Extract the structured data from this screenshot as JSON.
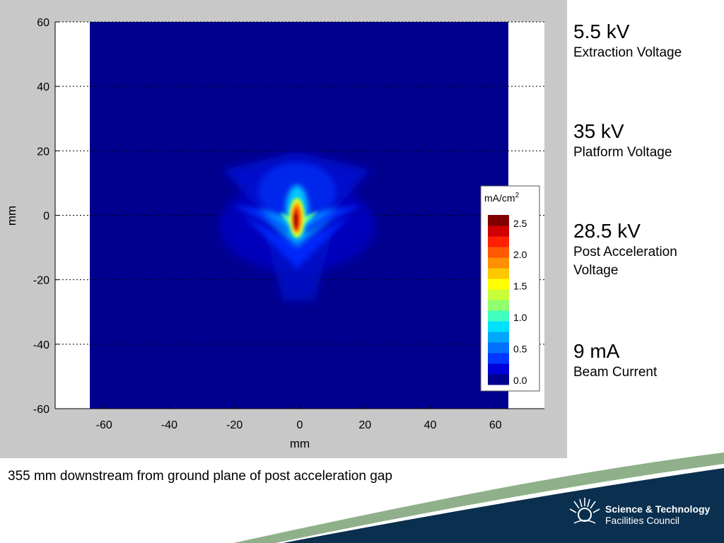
{
  "colors": {
    "panel_bg": "#c8c8c8",
    "plot_bg": "#00008f",
    "footer_blue": "#0a2f4f",
    "footer_green": "#8fb08a"
  },
  "chart_data": {
    "type": "heatmap",
    "title": "",
    "xlabel": "mm",
    "ylabel": "mm",
    "xlim": [
      -75,
      75
    ],
    "ylim": [
      -60,
      60
    ],
    "data_extent_x": [
      -65,
      65
    ],
    "x_ticks": [
      -60,
      -40,
      -20,
      0,
      20,
      40,
      60
    ],
    "y_ticks": [
      60,
      40,
      20,
      0,
      -20,
      -40,
      -60
    ],
    "grid": "dotted horizontal lines at y ticks",
    "colorbar": {
      "label": "mA/cm",
      "label_superscript": "2",
      "ticks": [
        "2.5",
        "2.0",
        "1.5",
        "1.0",
        "0.5",
        "0.0"
      ],
      "range": [
        0,
        2.7
      ],
      "colors": [
        "#00008f",
        "#0000d8",
        "#0038ff",
        "#0070ff",
        "#00a8ff",
        "#00e0ff",
        "#40ffc0",
        "#90ff70",
        "#c8ff38",
        "#ffff00",
        "#ffc800",
        "#ff9000",
        "#ff5800",
        "#ff2000",
        "#d00000",
        "#800000"
      ]
    },
    "description": "Beam current density peaks (~2.6 mA/cm2) near x=-1 mm, y=0 mm, with a horizontal wing spread of about ±20 mm and vertical streak from y=+8 to y=-12 mm"
  },
  "parameters": [
    {
      "value": "5.5 kV",
      "label": "Extraction Voltage"
    },
    {
      "value": "35 kV",
      "label": "Platform Voltage"
    },
    {
      "value": "28.5 kV",
      "label": "Post Acceleration Voltage"
    },
    {
      "value": "9 mA",
      "label": "Beam Current"
    }
  ],
  "caption": "355 mm downstream from ground plane of post acceleration gap",
  "logo": {
    "line1": "Science & Technology",
    "line2": "Facilities Council"
  }
}
